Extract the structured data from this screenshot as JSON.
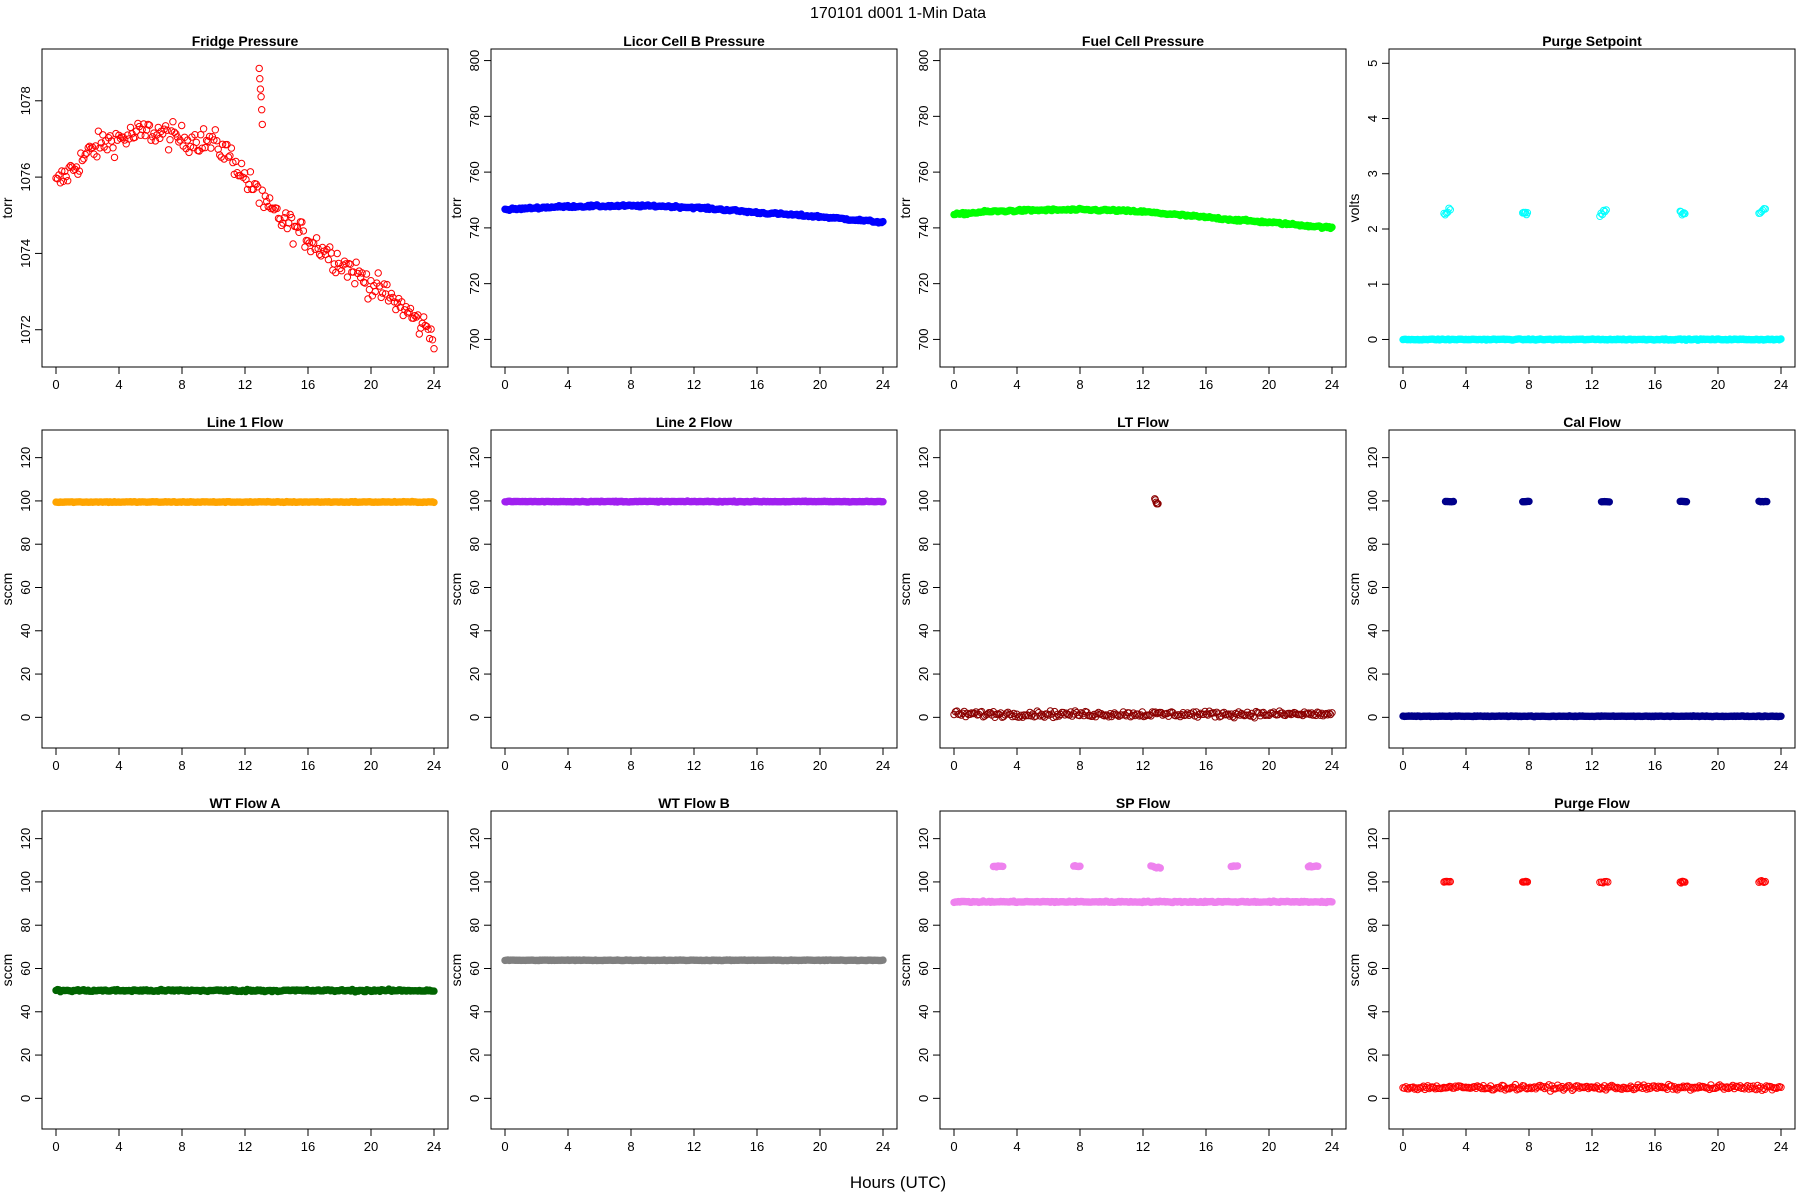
{
  "title": "170101    d001    1-Min Data",
  "xlabel": "Hours (UTC)",
  "chart_data": [
    {
      "type": "scatter",
      "title": "Fridge Pressure",
      "ylabel": "torr",
      "xlim": [
        0,
        24
      ],
      "ylim": [
        1071.6,
        1079.2
      ],
      "xticks": [
        0,
        4,
        8,
        12,
        16,
        20,
        24
      ],
      "yticks": [
        1072,
        1074,
        1076,
        1078
      ],
      "color": "#ff0000",
      "marker": "open",
      "noise": 0.35,
      "segments": [
        {
          "x": [
            0,
            1,
            2,
            3,
            4,
            5,
            6,
            7,
            8,
            9,
            10,
            11,
            12,
            12.9
          ],
          "y": [
            1075.8,
            1076.2,
            1076.6,
            1076.9,
            1077.0,
            1077.1,
            1077.2,
            1077.1,
            1077.0,
            1077.0,
            1076.9,
            1076.6,
            1076.0,
            1075.5
          ]
        },
        {
          "x": [
            12.9,
            13.1
          ],
          "y": [
            1078.9,
            1077.5
          ],
          "noise": 0.3
        },
        {
          "x": [
            13.1,
            14,
            15,
            16,
            17,
            18,
            19,
            20,
            21,
            22,
            23,
            24
          ],
          "y": [
            1075.3,
            1075.0,
            1074.7,
            1074.4,
            1074.1,
            1073.8,
            1073.5,
            1073.2,
            1072.9,
            1072.6,
            1072.2,
            1071.9
          ]
        }
      ]
    },
    {
      "type": "scatter",
      "title": "Licor Cell B Pressure",
      "ylabel": "torr",
      "xlim": [
        0,
        24
      ],
      "ylim": [
        698,
        802
      ],
      "xticks": [
        0,
        4,
        8,
        12,
        16,
        20,
        24
      ],
      "yticks": [
        700,
        720,
        740,
        760,
        780,
        800
      ],
      "color": "#0000ff",
      "marker": "filled",
      "noise": 0.4,
      "segments": [
        {
          "x": [
            0,
            2,
            4,
            6,
            8,
            10,
            12,
            14,
            16,
            18,
            20,
            22,
            24
          ],
          "y": [
            746.5,
            747.2,
            747.7,
            747.8,
            747.9,
            747.8,
            747.3,
            746.5,
            745.5,
            744.8,
            744.0,
            743.0,
            742.0
          ]
        }
      ]
    },
    {
      "type": "scatter",
      "title": "Fuel Cell Pressure",
      "ylabel": "torr",
      "xlim": [
        0,
        24
      ],
      "ylim": [
        698,
        802
      ],
      "xticks": [
        0,
        4,
        8,
        12,
        16,
        20,
        24
      ],
      "yticks": [
        700,
        720,
        740,
        760,
        780,
        800
      ],
      "color": "#00ff00",
      "marker": "filled",
      "noise": 0.4,
      "segments": [
        {
          "x": [
            0,
            2,
            4,
            6,
            8,
            10,
            12,
            14,
            16,
            18,
            20,
            22,
            24
          ],
          "y": [
            744.8,
            745.8,
            746.2,
            746.4,
            746.5,
            746.3,
            745.8,
            744.8,
            743.8,
            742.8,
            742.0,
            741.0,
            740.0
          ]
        }
      ]
    },
    {
      "type": "scatter",
      "title": "Purge Setpoint",
      "ylabel": "volts",
      "xlim": [
        0,
        24
      ],
      "ylim": [
        -0.1,
        5.15
      ],
      "xticks": [
        0,
        4,
        8,
        12,
        16,
        20,
        24
      ],
      "yticks": [
        0,
        1,
        2,
        3,
        4,
        5
      ],
      "color": "#00ffff",
      "marker": "open",
      "noise": 0.01,
      "segments": [
        {
          "x": [
            0,
            24
          ],
          "y": [
            0,
            0
          ],
          "marker": "filled"
        },
        {
          "x": [
            2.6,
            3.0
          ],
          "y": [
            2.25,
            2.35
          ],
          "noise": 0.04
        },
        {
          "x": [
            7.6,
            7.9
          ],
          "y": [
            2.3,
            2.28
          ],
          "noise": 0.04
        },
        {
          "x": [
            12.5,
            12.9
          ],
          "y": [
            2.25,
            2.35
          ],
          "noise": 0.04
        },
        {
          "x": [
            17.6,
            17.9
          ],
          "y": [
            2.3,
            2.28
          ],
          "noise": 0.04
        },
        {
          "x": [
            22.6,
            23.0
          ],
          "y": [
            2.3,
            2.37
          ],
          "noise": 0.04
        }
      ]
    },
    {
      "type": "scatter",
      "title": "Line 1 Flow",
      "ylabel": "sccm",
      "xlim": [
        0,
        24
      ],
      "ylim": [
        -4,
        130
      ],
      "xticks": [
        0,
        4,
        8,
        12,
        16,
        20,
        24
      ],
      "yticks": [
        0,
        20,
        40,
        60,
        80,
        100,
        120
      ],
      "color": "#ffa500",
      "marker": "filled",
      "noise": 0.2,
      "segments": [
        {
          "x": [
            0,
            24
          ],
          "y": [
            99.5,
            99.5
          ]
        }
      ]
    },
    {
      "type": "scatter",
      "title": "Line 2 Flow",
      "ylabel": "sccm",
      "xlim": [
        0,
        24
      ],
      "ylim": [
        -4,
        130
      ],
      "xticks": [
        0,
        4,
        8,
        12,
        16,
        20,
        24
      ],
      "yticks": [
        0,
        20,
        40,
        60,
        80,
        100,
        120
      ],
      "color": "#a020f0",
      "marker": "filled",
      "noise": 0.2,
      "segments": [
        {
          "x": [
            0,
            24
          ],
          "y": [
            99.7,
            99.7
          ]
        }
      ]
    },
    {
      "type": "scatter",
      "title": "LT Flow",
      "ylabel": "sccm",
      "xlim": [
        0,
        24
      ],
      "ylim": [
        -4,
        130
      ],
      "xticks": [
        0,
        4,
        8,
        12,
        16,
        20,
        24
      ],
      "yticks": [
        0,
        20,
        40,
        60,
        80,
        100,
        120
      ],
      "color": "#8b0000",
      "marker": "open",
      "noise": 1.4,
      "segments": [
        {
          "x": [
            0,
            24
          ],
          "y": [
            1.5,
            1.5
          ]
        },
        {
          "x": [
            12.75,
            12.95
          ],
          "y": [
            101,
            97.5
          ],
          "noise": 1.0
        }
      ]
    },
    {
      "type": "scatter",
      "title": "Cal Flow",
      "ylabel": "sccm",
      "xlim": [
        0,
        24
      ],
      "ylim": [
        -4,
        130
      ],
      "xticks": [
        0,
        4,
        8,
        12,
        16,
        20,
        24
      ],
      "yticks": [
        0,
        20,
        40,
        60,
        80,
        100,
        120
      ],
      "color": "#00008b",
      "marker": "filled",
      "noise": 0.15,
      "segments": [
        {
          "x": [
            0,
            24
          ],
          "y": [
            0.5,
            0.5
          ]
        },
        {
          "x": [
            2.7,
            3.2
          ],
          "y": [
            99.7,
            99.7
          ]
        },
        {
          "x": [
            7.6,
            8.0
          ],
          "y": [
            99.7,
            99.7
          ]
        },
        {
          "x": [
            12.6,
            13.1
          ],
          "y": [
            99.7,
            99.7
          ]
        },
        {
          "x": [
            17.6,
            18.0
          ],
          "y": [
            99.7,
            99.7
          ]
        },
        {
          "x": [
            22.6,
            23.1
          ],
          "y": [
            99.7,
            99.7
          ]
        }
      ]
    },
    {
      "type": "scatter",
      "title": "WT Flow A",
      "ylabel": "sccm",
      "xlim": [
        0,
        24
      ],
      "ylim": [
        -4,
        130
      ],
      "xticks": [
        0,
        4,
        8,
        12,
        16,
        20,
        24
      ],
      "yticks": [
        0,
        20,
        40,
        60,
        80,
        100,
        120
      ],
      "color": "#006400",
      "marker": "filled",
      "noise": 0.5,
      "segments": [
        {
          "x": [
            0,
            24
          ],
          "y": [
            49.8,
            49.8
          ]
        }
      ]
    },
    {
      "type": "scatter",
      "title": "WT Flow B",
      "ylabel": "sccm",
      "xlim": [
        0,
        24
      ],
      "ylim": [
        -4,
        130
      ],
      "xticks": [
        0,
        4,
        8,
        12,
        16,
        20,
        24
      ],
      "yticks": [
        0,
        20,
        40,
        60,
        80,
        100,
        120
      ],
      "color": "#808080",
      "marker": "filled",
      "noise": 0.15,
      "segments": [
        {
          "x": [
            0,
            24
          ],
          "y": [
            63.8,
            63.8
          ]
        }
      ]
    },
    {
      "type": "scatter",
      "title": "SP Flow",
      "ylabel": "sccm",
      "xlim": [
        0,
        24
      ],
      "ylim": [
        -4,
        130
      ],
      "xticks": [
        0,
        4,
        8,
        12,
        16,
        20,
        24
      ],
      "yticks": [
        0,
        20,
        40,
        60,
        80,
        100,
        120
      ],
      "color": "#ee82ee",
      "marker": "filled",
      "noise": 0.3,
      "segments": [
        {
          "x": [
            0,
            24
          ],
          "y": [
            90.8,
            90.8
          ]
        },
        {
          "x": [
            2.5,
            3.1
          ],
          "y": [
            107.2,
            107.2
          ]
        },
        {
          "x": [
            7.6,
            8.0
          ],
          "y": [
            107.2,
            107.2
          ]
        },
        {
          "x": [
            12.5,
            13.1
          ],
          "y": [
            107.2,
            106.5
          ]
        },
        {
          "x": [
            17.6,
            18.0
          ],
          "y": [
            107.2,
            107.2
          ]
        },
        {
          "x": [
            22.5,
            23.1
          ],
          "y": [
            107.2,
            107.2
          ]
        }
      ]
    },
    {
      "type": "scatter",
      "title": "Purge Flow",
      "ylabel": "sccm",
      "xlim": [
        0,
        24
      ],
      "ylim": [
        -4,
        130
      ],
      "xticks": [
        0,
        4,
        8,
        12,
        16,
        20,
        24
      ],
      "yticks": [
        0,
        20,
        40,
        60,
        80,
        100,
        120
      ],
      "color": "#ff0000",
      "marker": "open",
      "noise": 1.1,
      "segments": [
        {
          "x": [
            0,
            24
          ],
          "y": [
            5.0,
            5.0
          ]
        },
        {
          "x": [
            2.6,
            3.0
          ],
          "y": [
            100,
            100
          ],
          "noise": 0.4
        },
        {
          "x": [
            7.6,
            7.9
          ],
          "y": [
            100,
            100
          ],
          "noise": 0.4
        },
        {
          "x": [
            12.5,
            13.0
          ],
          "y": [
            100,
            100
          ],
          "noise": 0.5
        },
        {
          "x": [
            17.6,
            17.9
          ],
          "y": [
            100,
            100
          ],
          "noise": 0.4
        },
        {
          "x": [
            22.6,
            23.0
          ],
          "y": [
            100,
            100
          ],
          "noise": 0.4
        }
      ]
    }
  ]
}
